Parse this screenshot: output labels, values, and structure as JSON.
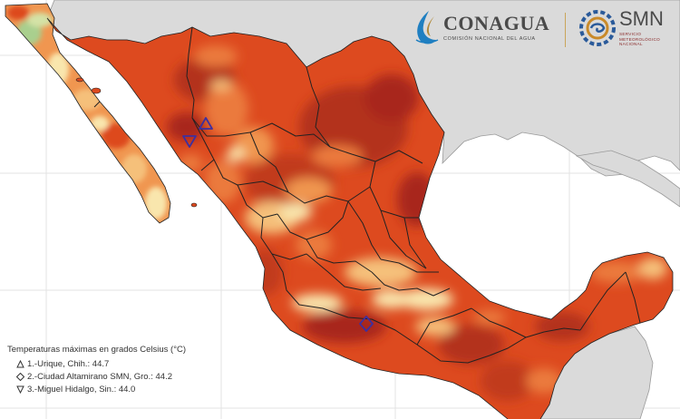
{
  "logos": {
    "conagua": {
      "name": "CONAGUA",
      "subtitle": "COMISIÓN NACIONAL DEL AGUA"
    },
    "smn": {
      "name": "SMN",
      "subtitle_lines": [
        "SERVICIO",
        "METEOROLÓGICO",
        "NACIONAL"
      ]
    }
  },
  "legend": {
    "title": "Temperaturas máximas en grados Celsius (°C)",
    "items": [
      {
        "marker": "triangle-up",
        "label": "1.-Urique, Chih.: 44.7"
      },
      {
        "marker": "diamond",
        "label": "2.-Ciudad Altamirano SMN, Gro.: 44.2"
      },
      {
        "marker": "triangle-down",
        "label": "3.-Miguel Hidalgo, Sin.: 44.0"
      }
    ]
  },
  "colors": {
    "ocean": "#ffffff",
    "land_outside": "#dadada",
    "heat_base": "#dd4a1f",
    "heat_hot": "#a8261a",
    "heat_warm": "#eb7a3c",
    "heat_mild": "#f5c07a",
    "heat_cool": "#f9e6ad",
    "cool_green": "#a9cf8e",
    "state_border": "#222222",
    "grid": "#e3e3e3",
    "station_marker": "#3d2fa0"
  }
}
